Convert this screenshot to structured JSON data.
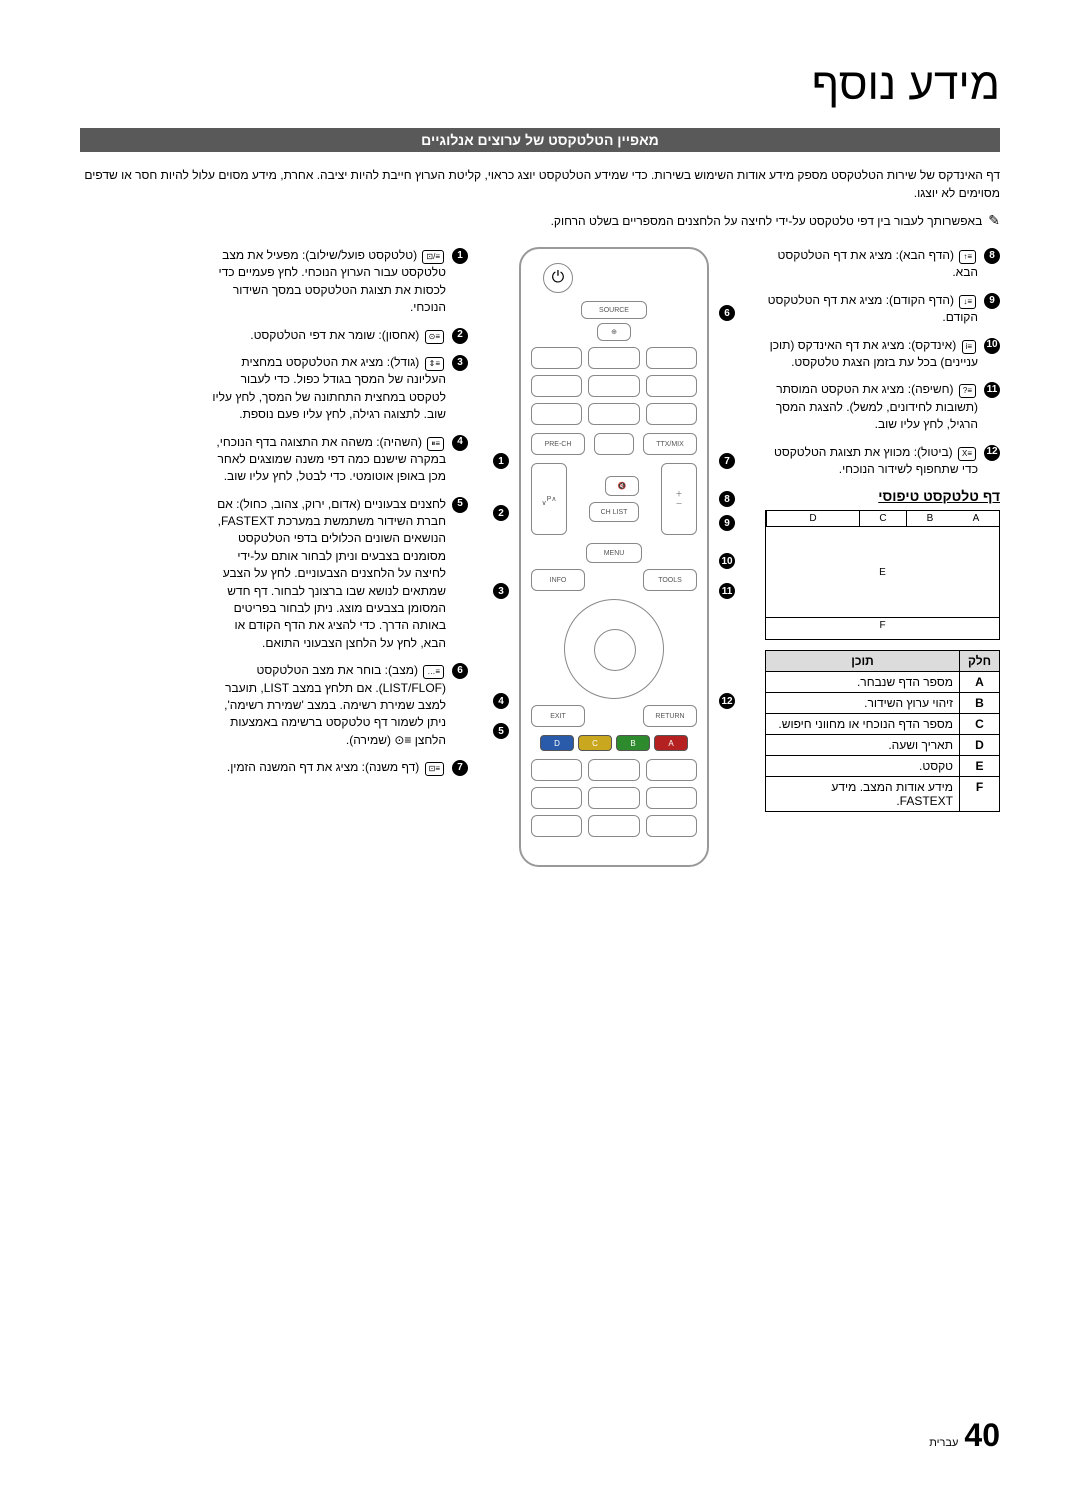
{
  "title": "מידע נוסף",
  "subtitle": "מאפיין הטלטקסט של ערוצים אנלוגיים",
  "intro": "דף האינדקס של שירות הטלטקסט מספק מידע אודות השימוש בשירות. כדי שמידע הטלטקסט יוצג כראוי, קליטת הערוץ חייבת להיות יציבה. אחרת, מידע מסוים עלול להיות חסר או שדפים מסוימים לא יוצגו.",
  "note_icon": "✎",
  "note": "באפשרותך לעבור בין דפי טלטקסט על-ידי לחיצה על הלחצנים המספריים בשלט הרחוק.",
  "right_items": [
    {
      "n": "8",
      "icon": "≡↑",
      "text": "(הדף הבא): מציג את דף הטלטקסט הבא."
    },
    {
      "n": "9",
      "icon": "≡↓",
      "text": "(הדף הקודם): מציג את דף הטלטקסט הקודם."
    },
    {
      "n": "10",
      "icon": "≡i",
      "text": "(אינדקס): מציג את דף האינדקס (תוכן עניינים) בכל עת בזמן הצגת טלטקסט."
    },
    {
      "n": "11",
      "icon": "≡?",
      "text": "(חשיפה): מציג את הטקסט המוסתר (תשובות לחידונים, למשל). להצגת המסך הרגיל, לחץ עליו שוב."
    },
    {
      "n": "12",
      "icon": "≡X",
      "text": "(ביטול): מכווץ את תצוגת הטלטקסט כדי שתחפוף לשידור הנוכחי."
    }
  ],
  "left_items": [
    {
      "n": "1",
      "icon": "≡/⊡",
      "text": "(טלטקסט פועל/שילוב): מפעיל את מצב טלטקסט עבור הערוץ הנוכחי. לחץ פעמיים כדי לכסות את תצוגת הטלטקסט במסך השידור הנוכחי."
    },
    {
      "n": "2",
      "icon": "≡⊙",
      "text": "(אחסון): שומר את דפי הטלטקסט."
    },
    {
      "n": "3",
      "icon": "≡⇕",
      "text": "(גודל): מציג את הטלטקסט במחצית העליונה של המסך בגודל כפול. כדי לעבור לטקסט במחצית התחתונה של המסך, לחץ עליו שוב. לתצוגה רגילה, לחץ עליו פעם נוספת."
    },
    {
      "n": "4",
      "icon": "≡⏸",
      "text": "(השהיה): משהה את התצוגה בדף הנוכחי, במקרה שישנם כמה דפי משנה שמוצגים לאחר מכן באופן אוטומטי. כדי לבטל, לחץ עליו שוב."
    },
    {
      "n": "5",
      "icon": "",
      "text": "לחצנים צבעוניים (אדום, ירוק, צהוב, כחול): אם חברת השידור משתמשת במערכת FASTEXT, הנושאים השונים הכלולים בדפי הטלטקסט מסומנים בצבעים וניתן לבחור אותם על-ידי לחיצה על הלחצנים הצבעוניים. לחץ על הצבע שמתאים לנושא שבו ברצונך לבחור. דף חדש המסומן בצבעים מוצג. ניתן לבחור בפריטים באותה הדרך. כדי להציג את הדף הקודם או הבא, לחץ על הלחצן הצבעוני התואם."
    },
    {
      "n": "6",
      "icon": "≡…",
      "text": "(מצב): בוחר את מצב הטלטקסט (LIST/FLOF).\nאם תלחץ במצב LIST, תועבר למצב שמירת רשימה. במצב 'שמירת רשימה', ניתן לשמור דף טלטקסט ברשימה באמצעות הלחצן ≡⊙ (שמירה)."
    },
    {
      "n": "7",
      "icon": "≡⊡",
      "text": "(דף משנה): מציג את דף המשנה הזמין."
    }
  ],
  "typical_heading": "דף טלטקסט טיפוסי",
  "typical": {
    "A": "A",
    "B": "B",
    "C": "C",
    "D": "D",
    "E": "E",
    "F": "F"
  },
  "table": {
    "h1": "חלק",
    "h2": "תוכן",
    "rows": [
      {
        "p": "A",
        "c": "מספר הדף שנבחר."
      },
      {
        "p": "B",
        "c": "זיהוי ערוץ השידור."
      },
      {
        "p": "C",
        "c": "מספר הדף הנוכחי או מחווני חיפוש."
      },
      {
        "p": "D",
        "c": "תאריך ושעה."
      },
      {
        "p": "E",
        "c": "טקסט."
      },
      {
        "p": "F",
        "c": "מידע אודות המצב. מידע FASTEXT."
      }
    ]
  },
  "remote_labels": {
    "source": "SOURCE",
    "ttx": "TTX/MIX",
    "prech": "PRE-CH",
    "chlist": "CH LIST",
    "menu": "MENU",
    "tools": "TOOLS",
    "info": "INFO",
    "return": "RETURN",
    "exit": "EXIT",
    "A": "A",
    "B": "B",
    "C": "C",
    "D": "D",
    "P": "P"
  },
  "colors": {
    "red": "#b52020",
    "green": "#2d8a2d",
    "yellow": "#c9a820",
    "blue": "#2a5aaa"
  },
  "page_number": "40",
  "page_lang": "עברית"
}
